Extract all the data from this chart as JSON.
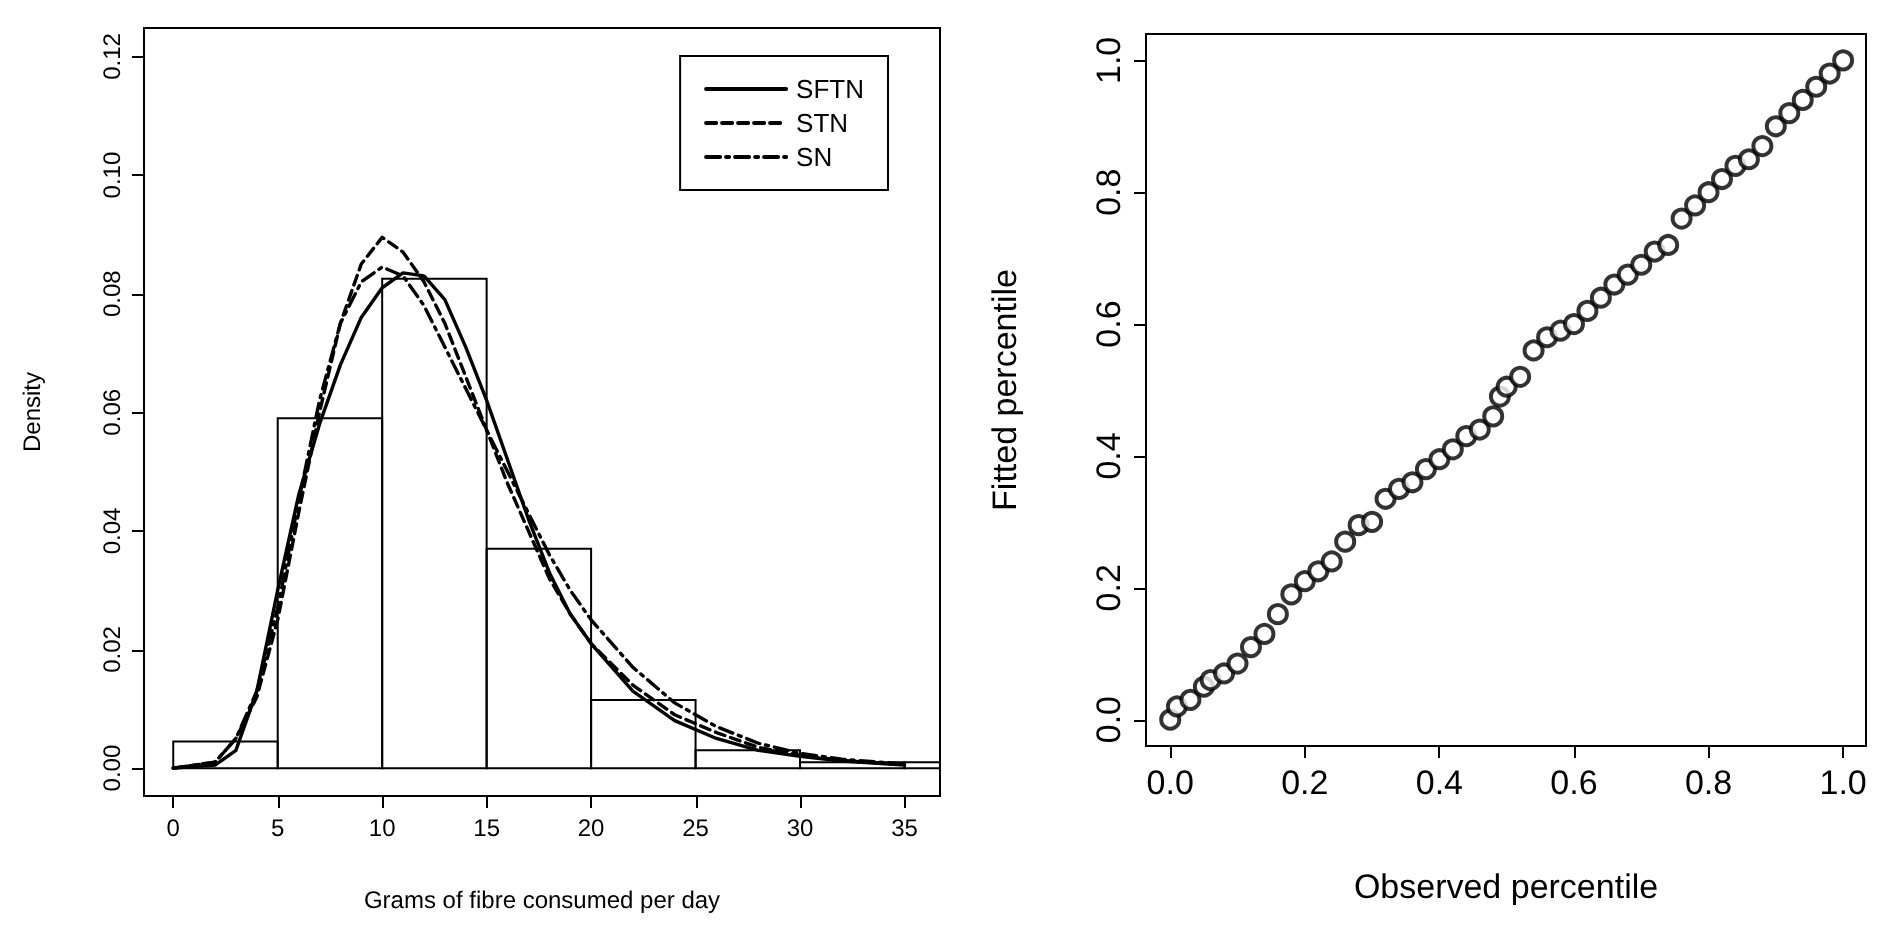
{
  "chart_data": [
    {
      "type": "histogram",
      "xlabel": "Grams of fibre consumed per day",
      "ylabel": "Density",
      "bins": [
        0,
        5,
        10,
        15,
        20,
        25,
        30,
        35,
        36.7
      ],
      "values": [
        0.0045,
        0.059,
        0.0825,
        0.037,
        0.0115,
        0.003,
        0.001,
        0.001
      ],
      "color": "#000000",
      "xlim": [
        -1.4,
        36.7
      ],
      "ylim": [
        -0.0047,
        0.1248
      ],
      "xticks": [
        0,
        5,
        10,
        15,
        20,
        25,
        30,
        35
      ],
      "yticks": [
        {
          "value": 0,
          "label": "0.00"
        },
        {
          "value": 0.02,
          "label": "0.02"
        },
        {
          "value": 0.04,
          "label": "0.04"
        },
        {
          "value": 0.06,
          "label": "0.06"
        },
        {
          "value": 0.08,
          "label": "0.08"
        },
        {
          "value": 0.1,
          "label": "0.10"
        },
        {
          "value": 0.12,
          "label": "0.12"
        }
      ],
      "legend": "top right",
      "grid": false,
      "series": [
        {
          "type": "line",
          "name": "SFTN",
          "color": "#000000",
          "line_style": "solid",
          "x": [
            0,
            2,
            3,
            4,
            5,
            6,
            7,
            8,
            9,
            10,
            11,
            12,
            13,
            14,
            15,
            16,
            17,
            18,
            19,
            20,
            22,
            24,
            26,
            28,
            30,
            32,
            35
          ],
          "values": [
            0,
            0.0005,
            0.003,
            0.013,
            0.03,
            0.046,
            0.058,
            0.068,
            0.076,
            0.081,
            0.0835,
            0.083,
            0.079,
            0.071,
            0.062,
            0.052,
            0.042,
            0.033,
            0.026,
            0.021,
            0.013,
            0.008,
            0.005,
            0.003,
            0.002,
            0.0012,
            0.0005
          ]
        },
        {
          "type": "line",
          "name": "STN",
          "color": "#000000",
          "line_style": "dashed",
          "x": [
            0,
            2,
            3,
            4,
            5,
            6,
            7,
            8,
            9,
            10,
            11,
            12,
            13,
            14,
            15,
            16,
            17,
            18,
            19,
            20,
            22,
            24,
            26,
            28,
            30,
            32,
            35
          ],
          "values": [
            0,
            0.001,
            0.005,
            0.012,
            0.025,
            0.043,
            0.06,
            0.075,
            0.085,
            0.0895,
            0.087,
            0.082,
            0.075,
            0.066,
            0.057,
            0.048,
            0.04,
            0.032,
            0.026,
            0.021,
            0.014,
            0.009,
            0.006,
            0.0035,
            0.0022,
            0.0013,
            0.0006
          ]
        },
        {
          "type": "line",
          "name": "SN",
          "color": "#000000",
          "line_style": "dotted",
          "x": [
            0,
            2,
            3,
            4,
            5,
            6,
            7,
            8,
            9,
            10,
            11,
            12,
            13,
            14,
            15,
            16,
            17,
            18,
            19,
            20,
            22,
            24,
            26,
            28,
            30,
            32,
            35
          ],
          "values": [
            0,
            0.001,
            0.005,
            0.013,
            0.027,
            0.045,
            0.062,
            0.075,
            0.082,
            0.0845,
            0.083,
            0.078,
            0.071,
            0.064,
            0.057,
            0.05,
            0.043,
            0.036,
            0.03,
            0.025,
            0.017,
            0.011,
            0.007,
            0.0042,
            0.0025,
            0.0015,
            0.0007
          ]
        }
      ]
    },
    {
      "type": "scatter",
      "xlabel": "Observed percentile",
      "ylabel": "Fitted percentile",
      "marker": "circle",
      "grid": false,
      "legend": false,
      "xlim": [
        -0.036,
        1.034
      ],
      "ylim": [
        -0.04,
        1.04
      ],
      "xticks": [
        {
          "value": 0,
          "label": "0.0"
        },
        {
          "value": 0.2,
          "label": "0.2"
        },
        {
          "value": 0.4,
          "label": "0.4"
        },
        {
          "value": 0.6,
          "label": "0.6"
        },
        {
          "value": 0.8,
          "label": "0.8"
        },
        {
          "value": 1,
          "label": "1.0"
        }
      ],
      "yticks": [
        {
          "value": 0,
          "label": "0.0"
        },
        {
          "value": 0.2,
          "label": "0.2"
        },
        {
          "value": 0.4,
          "label": "0.4"
        },
        {
          "value": 0.6,
          "label": "0.6"
        },
        {
          "value": 0.8,
          "label": "0.8"
        },
        {
          "value": 1,
          "label": "1.0"
        }
      ],
      "series": [
        {
          "color": "#000000",
          "x": [
            0,
            0.01,
            0.03,
            0.05,
            0.06,
            0.08,
            0.1,
            0.12,
            0.14,
            0.16,
            0.18,
            0.2,
            0.22,
            0.24,
            0.26,
            0.28,
            0.3,
            0.32,
            0.34,
            0.36,
            0.38,
            0.4,
            0.42,
            0.44,
            0.46,
            0.48,
            0.49,
            0.5,
            0.52,
            0.54,
            0.56,
            0.58,
            0.6,
            0.62,
            0.64,
            0.66,
            0.68,
            0.7,
            0.72,
            0.74,
            0.76,
            0.78,
            0.8,
            0.82,
            0.84,
            0.86,
            0.88,
            0.9,
            0.92,
            0.94,
            0.96,
            0.98,
            1.0
          ],
          "values": [
            0,
            0.02,
            0.03,
            0.05,
            0.06,
            0.07,
            0.085,
            0.11,
            0.13,
            0.16,
            0.19,
            0.21,
            0.225,
            0.24,
            0.27,
            0.295,
            0.3,
            0.335,
            0.35,
            0.36,
            0.38,
            0.395,
            0.41,
            0.43,
            0.44,
            0.46,
            0.49,
            0.505,
            0.52,
            0.56,
            0.58,
            0.59,
            0.6,
            0.62,
            0.64,
            0.66,
            0.675,
            0.69,
            0.71,
            0.72,
            0.76,
            0.78,
            0.8,
            0.82,
            0.84,
            0.85,
            0.87,
            0.9,
            0.92,
            0.94,
            0.96,
            0.98,
            1.0
          ]
        }
      ]
    }
  ]
}
